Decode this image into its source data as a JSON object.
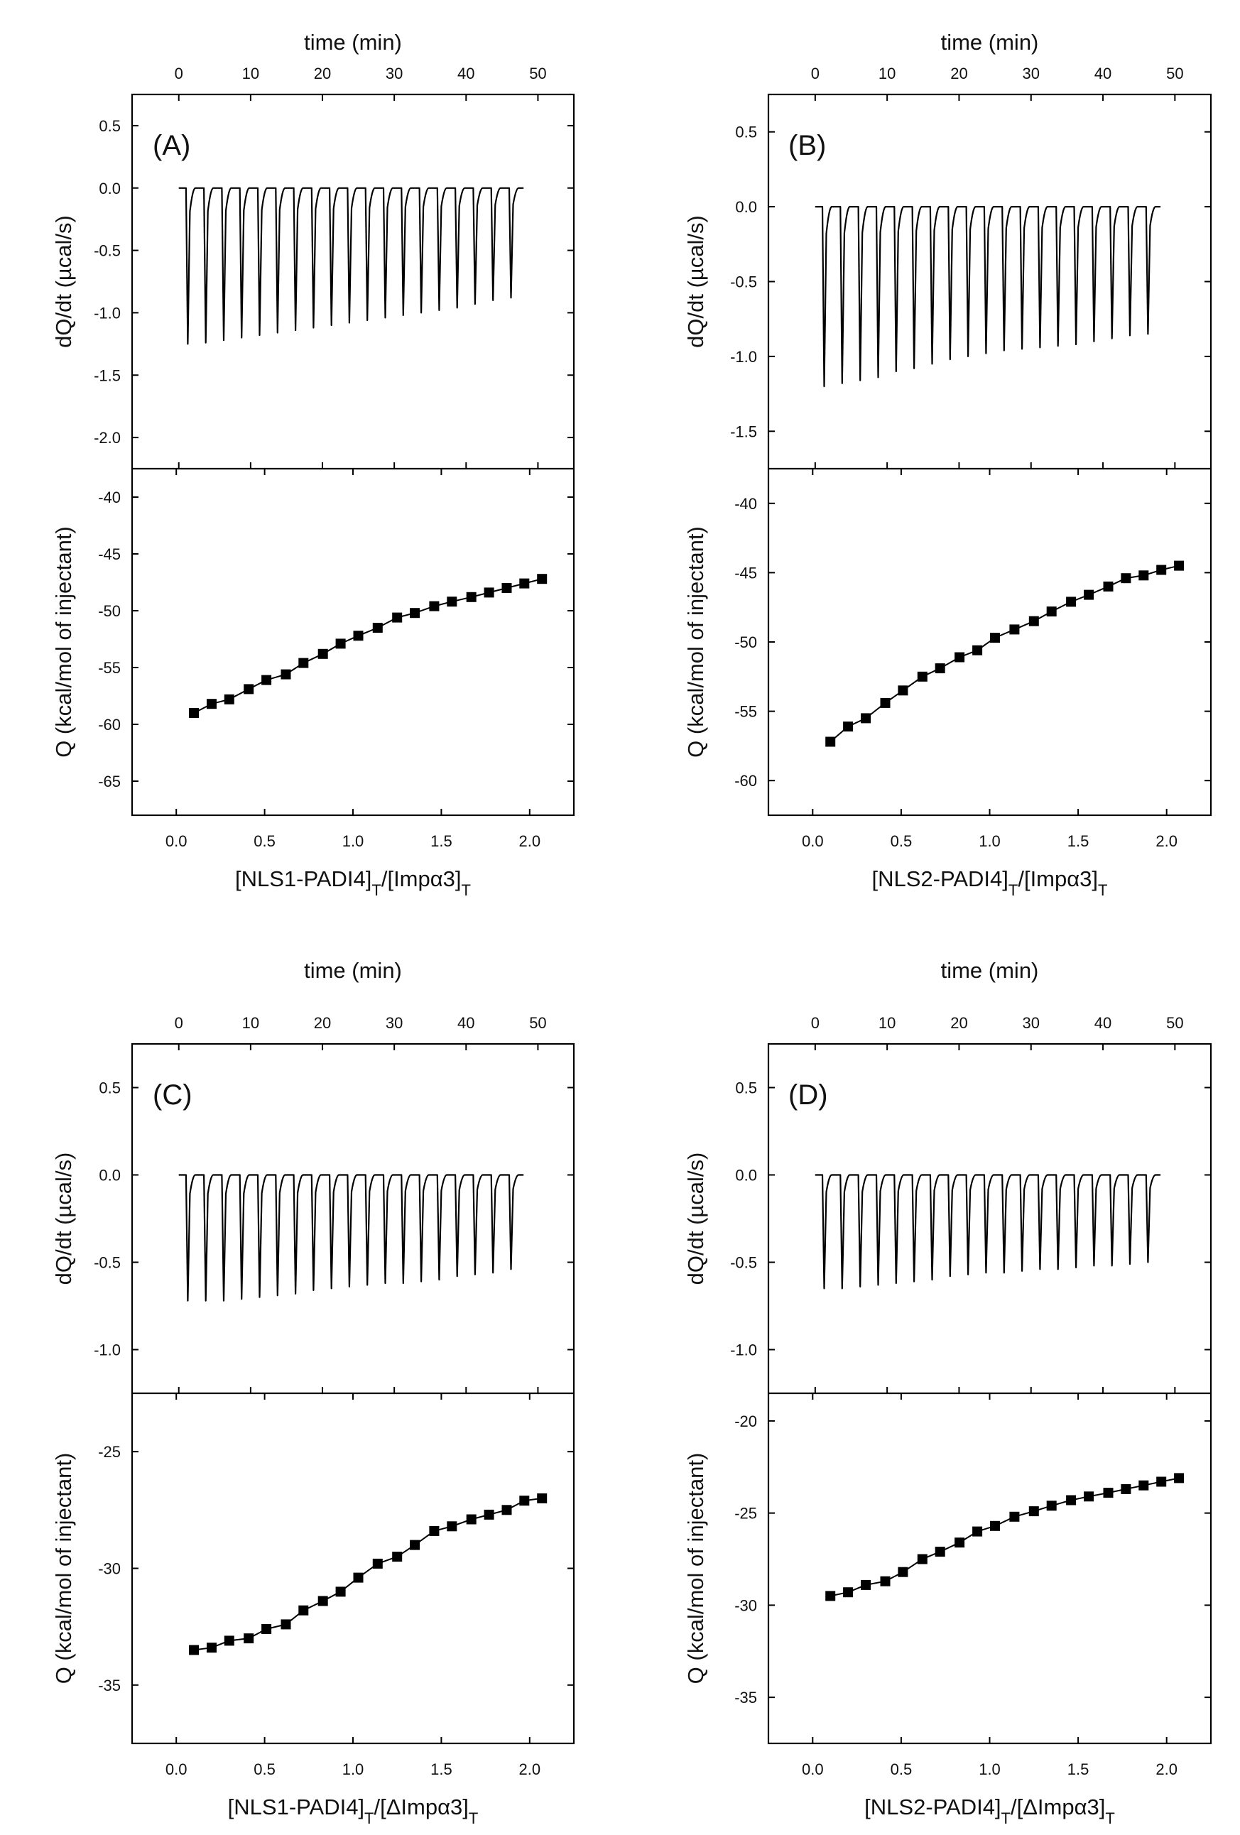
{
  "figure": {
    "type": "isothermal-titration-calorimetry-grid",
    "colors": {
      "axis": "#000000",
      "trace": "#000000",
      "background": "#ffffff"
    }
  },
  "chart_data": [
    {
      "panel": "(A)",
      "type": "line",
      "top": {
        "xlabel": "time (min)",
        "ylabel": "dQ/dt (µcal/s)",
        "xlim": [
          -6.5,
          55
        ],
        "ylim": [
          -2.25,
          0.75
        ],
        "xticks": [
          0,
          10,
          20,
          30,
          40,
          50
        ],
        "yticks": [
          0.5,
          0.0,
          -0.5,
          -1.0,
          -1.5,
          -2.0
        ],
        "ytick_labels": [
          "0.5",
          "0.0",
          "-0.5",
          "-1.0",
          "-1.5",
          "-2.0"
        ],
        "trace_start": 0,
        "trace_end": 48,
        "baseline": 0.0,
        "injection_times": [
          1,
          3.5,
          6,
          8.5,
          11,
          13.5,
          16,
          18.5,
          21,
          23.5,
          26,
          28.5,
          31,
          33.5,
          36,
          38.5,
          41,
          43.5,
          46
        ],
        "peak_values": [
          -1.25,
          -1.24,
          -1.22,
          -1.2,
          -1.18,
          -1.16,
          -1.14,
          -1.12,
          -1.1,
          -1.08,
          -1.06,
          -1.04,
          -1.02,
          -1.0,
          -0.98,
          -0.96,
          -0.93,
          -0.9,
          -0.88
        ]
      },
      "bottom": {
        "xlabel": "[NLS1-PADI4]T/[Impα3]T",
        "xlabel_parts": [
          "[NLS1-PADI4]",
          "T",
          "/[Impα3]",
          "T"
        ],
        "ylabel": "Q (kcal/mol of injectant)",
        "xlim": [
          -0.25,
          2.25
        ],
        "ylim": [
          -68,
          -37.5
        ],
        "xticks": [
          0.0,
          0.5,
          1.0,
          1.5,
          2.0
        ],
        "xtick_labels": [
          "0.0",
          "0.5",
          "1.0",
          "1.5",
          "2.0"
        ],
        "yticks": [
          -40,
          -45,
          -50,
          -55,
          -60,
          -65
        ],
        "ytick_labels": [
          "-40",
          "-45",
          "-50",
          "-55",
          "-60",
          "-65"
        ],
        "points": {
          "x": [
            0.1,
            0.2,
            0.3,
            0.41,
            0.51,
            0.62,
            0.72,
            0.83,
            0.93,
            1.03,
            1.14,
            1.25,
            1.35,
            1.46,
            1.56,
            1.67,
            1.77,
            1.87,
            1.97,
            2.07
          ],
          "y": [
            -59.0,
            -58.2,
            -57.8,
            -56.9,
            -56.1,
            -55.6,
            -54.6,
            -53.8,
            -52.9,
            -52.2,
            -51.5,
            -50.6,
            -50.2,
            -49.6,
            -49.2,
            -48.8,
            -48.4,
            -48.0,
            -47.6,
            -47.2
          ]
        }
      }
    },
    {
      "panel": "(B)",
      "type": "line",
      "top": {
        "xlabel": "time (min)",
        "ylabel": "dQ/dt (µcal/s)",
        "xlim": [
          -6.5,
          55
        ],
        "ylim": [
          -1.75,
          0.75
        ],
        "xticks": [
          0,
          10,
          20,
          30,
          40,
          50
        ],
        "yticks": [
          0.5,
          0.0,
          -0.5,
          -1.0,
          -1.5
        ],
        "ytick_labels": [
          "0.5",
          "0.0",
          "-0.5",
          "-1.0",
          "-1.5"
        ],
        "trace_start": 0,
        "trace_end": 48,
        "baseline": 0.0,
        "injection_times": [
          1,
          3.5,
          6,
          8.5,
          11,
          13.5,
          16,
          18.5,
          21,
          23.5,
          26,
          28.5,
          31,
          33.5,
          36,
          38.5,
          41,
          43.5,
          46
        ],
        "peak_values": [
          -1.2,
          -1.18,
          -1.16,
          -1.14,
          -1.1,
          -1.08,
          -1.05,
          -1.02,
          -1.0,
          -0.98,
          -0.96,
          -0.95,
          -0.94,
          -0.93,
          -0.92,
          -0.9,
          -0.88,
          -0.86,
          -0.85
        ]
      },
      "bottom": {
        "xlabel": "[NLS2-PADI4]T/[Impα3]T",
        "xlabel_parts": [
          "[NLS2-PADI4]",
          "T",
          "/[Impα3]",
          "T"
        ],
        "ylabel": "Q (kcal/mol of injectant)",
        "xlim": [
          -0.25,
          2.25
        ],
        "ylim": [
          -62.5,
          -37.5
        ],
        "xticks": [
          0.0,
          0.5,
          1.0,
          1.5,
          2.0
        ],
        "xtick_labels": [
          "0.0",
          "0.5",
          "1.0",
          "1.5",
          "2.0"
        ],
        "yticks": [
          -40,
          -45,
          -50,
          -55,
          -60
        ],
        "ytick_labels": [
          "-40",
          "-45",
          "-50",
          "-55",
          "-60"
        ],
        "points": {
          "x": [
            0.1,
            0.2,
            0.3,
            0.41,
            0.51,
            0.62,
            0.72,
            0.83,
            0.93,
            1.03,
            1.14,
            1.25,
            1.35,
            1.46,
            1.56,
            1.67,
            1.77,
            1.87,
            1.97,
            2.07
          ],
          "y": [
            -57.2,
            -56.1,
            -55.5,
            -54.4,
            -53.5,
            -52.5,
            -51.9,
            -51.1,
            -50.6,
            -49.7,
            -49.1,
            -48.5,
            -47.8,
            -47.1,
            -46.6,
            -46.0,
            -45.4,
            -45.2,
            -44.8,
            -44.5
          ]
        }
      }
    },
    {
      "panel": "(C)",
      "type": "line",
      "top": {
        "xlabel": "time (min)",
        "ylabel": "dQ/dt (µcal/s)",
        "xlim": [
          -6.5,
          55
        ],
        "ylim": [
          -1.25,
          0.75
        ],
        "xticks": [
          0,
          10,
          20,
          30,
          40,
          50
        ],
        "yticks": [
          0.5,
          0.0,
          -0.5,
          -1.0
        ],
        "ytick_labels": [
          "0.5",
          "0.0",
          "-0.5",
          "-1.0"
        ],
        "trace_start": 0,
        "trace_end": 48,
        "baseline": 0.0,
        "injection_times": [
          1,
          3.5,
          6,
          8.5,
          11,
          13.5,
          16,
          18.5,
          21,
          23.5,
          26,
          28.5,
          31,
          33.5,
          36,
          38.5,
          41,
          43.5,
          46
        ],
        "peak_values": [
          -0.72,
          -0.72,
          -0.72,
          -0.71,
          -0.7,
          -0.69,
          -0.68,
          -0.66,
          -0.65,
          -0.64,
          -0.63,
          -0.62,
          -0.62,
          -0.61,
          -0.6,
          -0.58,
          -0.57,
          -0.56,
          -0.54
        ]
      },
      "bottom": {
        "xlabel": "[NLS1-PADI4]T/[ΔImpα3]T",
        "xlabel_parts": [
          "[NLS1-PADI4]",
          "T",
          "/[ΔImpα3]",
          "T"
        ],
        "ylabel": "Q (kcal/mol of injectant)",
        "xlim": [
          -0.25,
          2.25
        ],
        "ylim": [
          -37.5,
          -22.5
        ],
        "xticks": [
          0.0,
          0.5,
          1.0,
          1.5,
          2.0
        ],
        "xtick_labels": [
          "0.0",
          "0.5",
          "1.0",
          "1.5",
          "2.0"
        ],
        "yticks": [
          -25,
          -30,
          -35
        ],
        "ytick_labels": [
          "-25",
          "-30",
          "-35"
        ],
        "points": {
          "x": [
            0.1,
            0.2,
            0.3,
            0.41,
            0.51,
            0.62,
            0.72,
            0.83,
            0.93,
            1.03,
            1.14,
            1.25,
            1.35,
            1.46,
            1.56,
            1.67,
            1.77,
            1.87,
            1.97,
            2.07
          ],
          "y": [
            -33.5,
            -33.4,
            -33.1,
            -33.0,
            -32.6,
            -32.4,
            -31.8,
            -31.4,
            -31.0,
            -30.4,
            -29.8,
            -29.5,
            -29.0,
            -28.4,
            -28.2,
            -27.9,
            -27.7,
            -27.5,
            -27.1,
            -27.0
          ]
        }
      }
    },
    {
      "panel": "(D)",
      "type": "line",
      "top": {
        "xlabel": "time (min)",
        "ylabel": "dQ/dt (µcal/s)",
        "xlim": [
          -6.5,
          55
        ],
        "ylim": [
          -1.25,
          0.75
        ],
        "xticks": [
          0,
          10,
          20,
          30,
          40,
          50
        ],
        "yticks": [
          0.5,
          0.0,
          -0.5,
          -1.0
        ],
        "ytick_labels": [
          "0.5",
          "0.0",
          "-0.5",
          "-1.0"
        ],
        "trace_start": 0,
        "trace_end": 48,
        "baseline": 0.0,
        "injection_times": [
          1,
          3.5,
          6,
          8.5,
          11,
          13.5,
          16,
          18.5,
          21,
          23.5,
          26,
          28.5,
          31,
          33.5,
          36,
          38.5,
          41,
          43.5,
          46
        ],
        "peak_values": [
          -0.65,
          -0.65,
          -0.64,
          -0.63,
          -0.62,
          -0.61,
          -0.6,
          -0.58,
          -0.57,
          -0.56,
          -0.56,
          -0.55,
          -0.54,
          -0.54,
          -0.53,
          -0.52,
          -0.52,
          -0.51,
          -0.5
        ]
      },
      "bottom": {
        "xlabel": "[NLS2-PADI4]T/[ΔImpα3]T",
        "xlabel_parts": [
          "[NLS2-PADI4]",
          "T",
          "/[ΔImpα3]",
          "T"
        ],
        "ylabel": "Q (kcal/mol of injectant)",
        "xlim": [
          -0.25,
          2.25
        ],
        "ylim": [
          -37.5,
          -18.5
        ],
        "xticks": [
          0.0,
          0.5,
          1.0,
          1.5,
          2.0
        ],
        "xtick_labels": [
          "0.0",
          "0.5",
          "1.0",
          "1.5",
          "2.0"
        ],
        "yticks": [
          -20,
          -25,
          -30,
          -35
        ],
        "ytick_labels": [
          "-20",
          "-25",
          "-30",
          "-35"
        ],
        "points": {
          "x": [
            0.1,
            0.2,
            0.3,
            0.41,
            0.51,
            0.62,
            0.72,
            0.83,
            0.93,
            1.03,
            1.14,
            1.25,
            1.35,
            1.46,
            1.56,
            1.67,
            1.77,
            1.87,
            1.97,
            2.07
          ],
          "y": [
            -29.5,
            -29.3,
            -28.9,
            -28.7,
            -28.2,
            -27.5,
            -27.1,
            -26.6,
            -26.0,
            -25.7,
            -25.2,
            -24.9,
            -24.6,
            -24.3,
            -24.1,
            -23.9,
            -23.7,
            -23.5,
            -23.3,
            -23.1
          ]
        }
      }
    }
  ]
}
